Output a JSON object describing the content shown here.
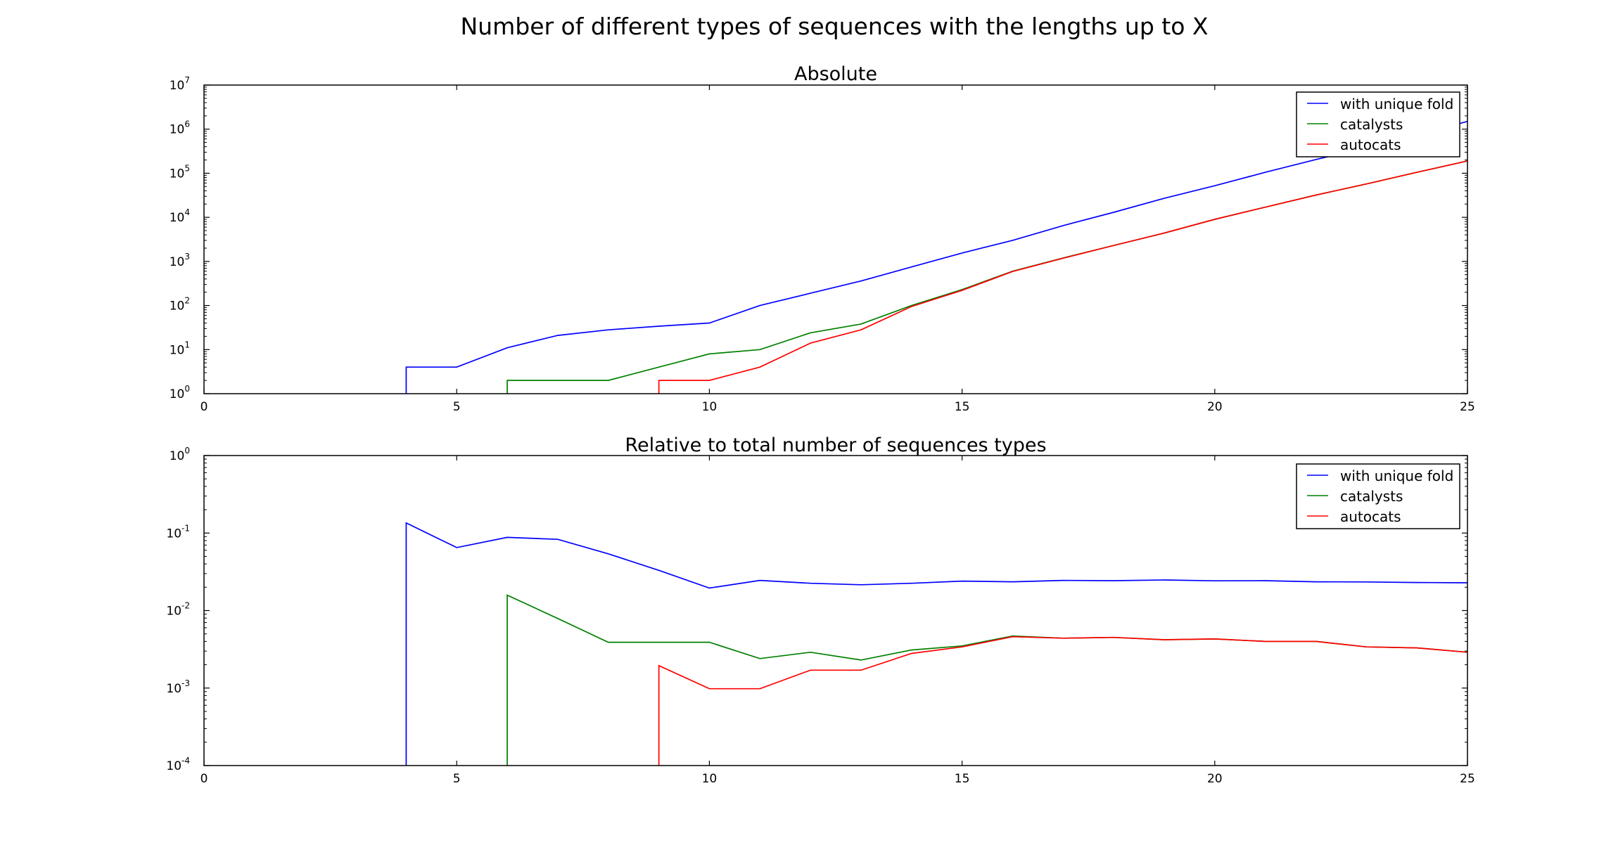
{
  "figure": {
    "suptitle": "Number of different types of sequences with the lengths up to X"
  },
  "chart_data": [
    {
      "type": "line",
      "title": "Absolute",
      "xlabel": "",
      "ylabel": "",
      "xlim": [
        0,
        25
      ],
      "ylim": [
        1,
        10000000
      ],
      "yscale": "log",
      "grid": false,
      "legend_position": "top-right",
      "x_ticks": [
        0,
        5,
        10,
        15,
        20,
        25
      ],
      "y_ticks": [
        {
          "value": 1,
          "base": "10",
          "exp": "0"
        },
        {
          "value": 10,
          "base": "10",
          "exp": "1"
        },
        {
          "value": 100,
          "base": "10",
          "exp": "2"
        },
        {
          "value": 1000,
          "base": "10",
          "exp": "3"
        },
        {
          "value": 10000,
          "base": "10",
          "exp": "4"
        },
        {
          "value": 100000,
          "base": "10",
          "exp": "5"
        },
        {
          "value": 1000000,
          "base": "10",
          "exp": "6"
        },
        {
          "value": 10000000,
          "base": "10",
          "exp": "7"
        }
      ],
      "series": [
        {
          "name": "with unique fold",
          "color": "#0000ff",
          "x": [
            4,
            4,
            5,
            6,
            7,
            8,
            9,
            10,
            11,
            12,
            13,
            14,
            15,
            16,
            17,
            18,
            19,
            20,
            21,
            22,
            23,
            24,
            25
          ],
          "y": [
            1,
            4,
            4,
            11,
            21,
            28,
            34,
            40,
            100,
            190,
            360,
            750,
            1550,
            3000,
            6500,
            13000,
            27000,
            52000,
            105000,
            205000,
            380000,
            740000,
            1500000
          ]
        },
        {
          "name": "catalysts",
          "color": "#008000",
          "x": [
            6,
            6,
            7,
            8,
            9,
            10,
            11,
            12,
            13,
            14,
            15,
            16,
            17,
            18,
            19,
            20,
            21,
            22,
            23,
            24,
            25
          ],
          "y": [
            1,
            2,
            2,
            2,
            4,
            8,
            10,
            24,
            38,
            100,
            230,
            600,
            1200,
            2300,
            4400,
            9000,
            17000,
            32000,
            57000,
            105000,
            190000
          ]
        },
        {
          "name": "autocats",
          "color": "#ff0000",
          "x": [
            9,
            9,
            10,
            11,
            12,
            13,
            14,
            15,
            16,
            17,
            18,
            19,
            20,
            21,
            22,
            23,
            24,
            25
          ],
          "y": [
            1,
            2,
            2,
            4,
            14,
            28,
            95,
            220,
            590,
            1180,
            2300,
            4400,
            9000,
            17000,
            32000,
            57000,
            105000,
            190000
          ]
        }
      ]
    },
    {
      "type": "line",
      "title": "Relative to total number of sequences types",
      "xlabel": "",
      "ylabel": "",
      "xlim": [
        0,
        25
      ],
      "ylim": [
        0.0001,
        1
      ],
      "yscale": "log",
      "grid": false,
      "legend_position": "top-right",
      "x_ticks": [
        0,
        5,
        10,
        15,
        20,
        25
      ],
      "y_ticks": [
        {
          "value": 0.0001,
          "base": "10",
          "exp": "-4"
        },
        {
          "value": 0.001,
          "base": "10",
          "exp": "-3"
        },
        {
          "value": 0.01,
          "base": "10",
          "exp": "-2"
        },
        {
          "value": 0.1,
          "base": "10",
          "exp": "-1"
        },
        {
          "value": 1,
          "base": "10",
          "exp": "0"
        }
      ],
      "series": [
        {
          "name": "with unique fold",
          "color": "#0000ff",
          "x": [
            4,
            4,
            5,
            6,
            7,
            8,
            9,
            10,
            11,
            12,
            13,
            14,
            15,
            16,
            17,
            18,
            19,
            20,
            21,
            22,
            23,
            24,
            25
          ],
          "y": [
            0.0001,
            0.135,
            0.065,
            0.088,
            0.083,
            0.054,
            0.033,
            0.0195,
            0.0245,
            0.0225,
            0.0215,
            0.0225,
            0.024,
            0.0235,
            0.0245,
            0.0243,
            0.0248,
            0.0242,
            0.0243,
            0.0235,
            0.0234,
            0.023,
            0.0228
          ]
        },
        {
          "name": "catalysts",
          "color": "#008000",
          "x": [
            6,
            6,
            7,
            8,
            9,
            10,
            11,
            12,
            13,
            14,
            15,
            16,
            17,
            18,
            19,
            20,
            21,
            22,
            23,
            24,
            25
          ],
          "y": [
            0.0001,
            0.0158,
            0.0079,
            0.0039,
            0.0039,
            0.0039,
            0.0024,
            0.0029,
            0.0023,
            0.0031,
            0.0035,
            0.0047,
            0.0044,
            0.0045,
            0.0042,
            0.0043,
            0.004,
            0.004,
            0.0034,
            0.0033,
            0.0029
          ]
        },
        {
          "name": "autocats",
          "color": "#ff0000",
          "x": [
            9,
            9,
            10,
            11,
            12,
            13,
            14,
            15,
            16,
            17,
            18,
            19,
            20,
            21,
            22,
            23,
            24,
            25
          ],
          "y": [
            0.0001,
            0.00195,
            0.00098,
            0.00098,
            0.0017,
            0.0017,
            0.0028,
            0.0034,
            0.0046,
            0.0044,
            0.0045,
            0.0042,
            0.0043,
            0.004,
            0.004,
            0.0034,
            0.0033,
            0.0029
          ]
        }
      ]
    }
  ]
}
